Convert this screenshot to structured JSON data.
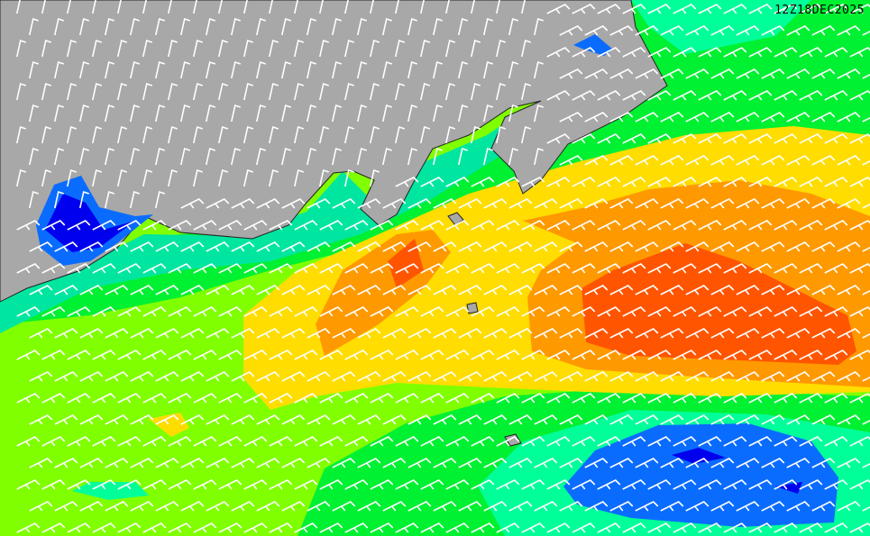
{
  "map": {
    "timestamp": "12Z18DEC2025",
    "colors": {
      "land": "#a8a8a8",
      "lime": "#80ff00",
      "green": "#00f032",
      "teal": "#00ff99",
      "yellow": "#ffdd00",
      "orange": "#ff9900",
      "red_orange": "#ff5500",
      "blue": "#0a6cff",
      "dark_blue": "#0000ee",
      "barb": "#ffffff"
    }
  }
}
